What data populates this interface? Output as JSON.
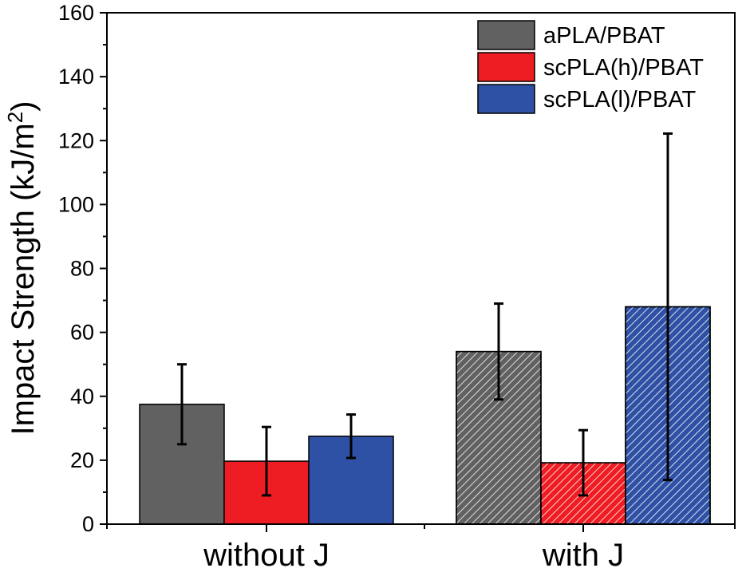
{
  "chart_data": {
    "type": "bar",
    "title": "",
    "xlabel": "",
    "ylabel": "Impact Strength (kJ/m",
    "ylabel_superscript": "2",
    "ylabel_suffix": ")",
    "ylim": [
      0,
      160
    ],
    "yticks": [
      0,
      20,
      40,
      60,
      80,
      100,
      120,
      140,
      160
    ],
    "categories": [
      "without J",
      "with J"
    ],
    "hatched_categories": [
      "with J"
    ],
    "legend_position": "top-right",
    "series": [
      {
        "name": "aPLA/PBAT",
        "color": "#616161",
        "values": [
          37.5,
          54
        ],
        "errors": [
          12.5,
          15
        ]
      },
      {
        "name": "scPLA(h)/PBAT",
        "color": "#ee1d23",
        "values": [
          19.7,
          19.2
        ],
        "errors": [
          10.7,
          10.2
        ]
      },
      {
        "name": "scPLA(l)/PBAT",
        "color": "#2f51a5",
        "values": [
          27.5,
          68
        ],
        "errors": [
          6.8,
          54.2
        ]
      }
    ]
  }
}
